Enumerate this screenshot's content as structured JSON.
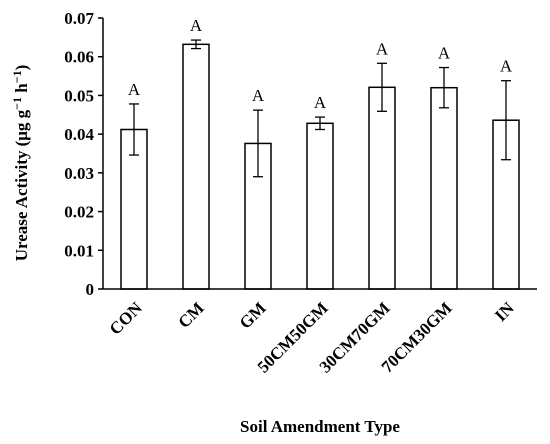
{
  "chart_data": {
    "type": "bar",
    "categories": [
      "CON",
      "CM",
      "GM",
      "50CM50GM",
      "30CM70GM",
      "70CM30GM",
      "IN"
    ],
    "values": [
      0.0412,
      0.0632,
      0.0376,
      0.0428,
      0.0521,
      0.052,
      0.0436
    ],
    "errors": [
      0.0066,
      0.0011,
      0.0086,
      0.0016,
      0.0062,
      0.0052,
      0.0102
    ],
    "significance": [
      "A",
      "A",
      "A",
      "A",
      "A",
      "A",
      "A"
    ],
    "xlabel": "Soil Amendment Type",
    "ylabel": "Urease Activity (μg g⁻¹ h⁻¹)",
    "ylim": [
      0,
      0.07
    ],
    "yticks": [
      "0",
      "0.01",
      "0.02",
      "0.03",
      "0.04",
      "0.05",
      "0.06",
      "0.07"
    ],
    "grid": false,
    "bar_fill": "#ffffff",
    "bar_stroke": "#000000"
  }
}
